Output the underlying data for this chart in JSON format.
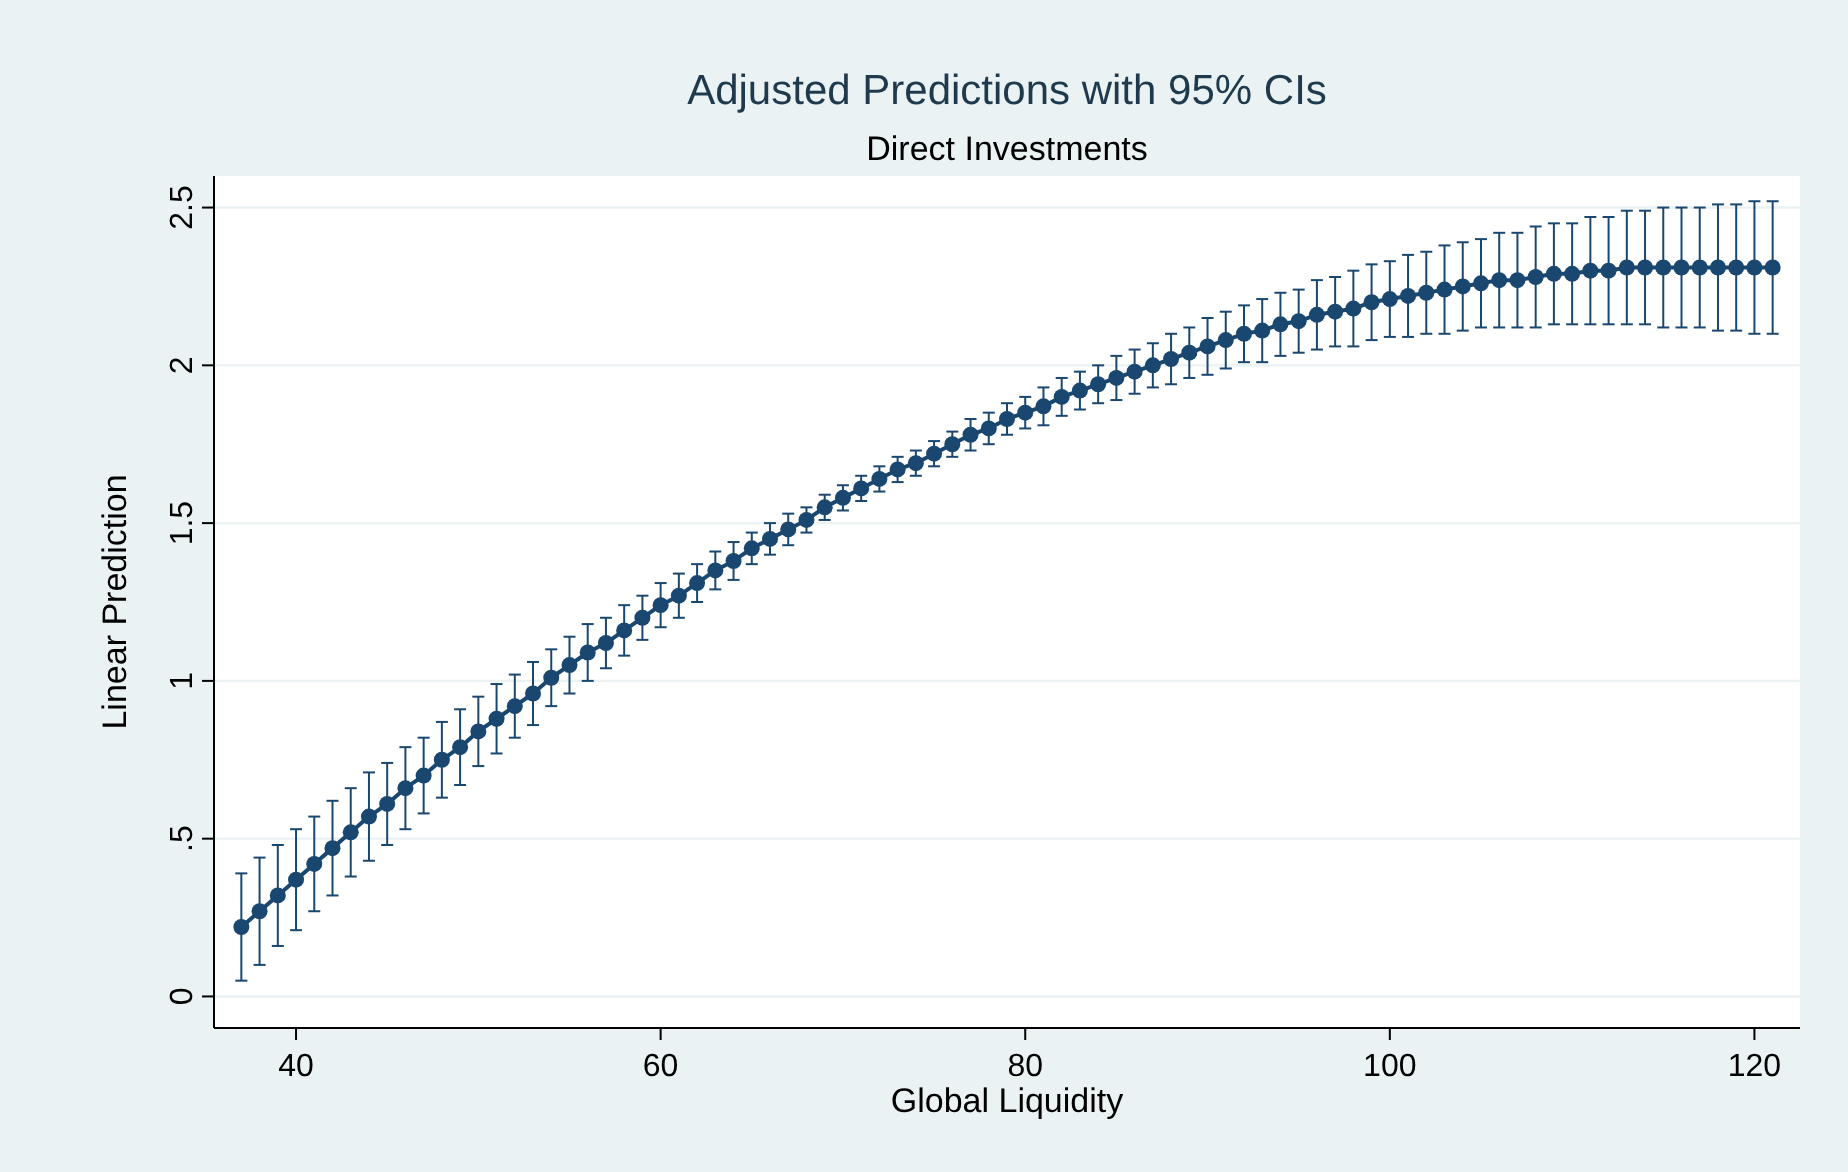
{
  "chart_data": {
    "type": "line",
    "title": "Adjusted Predictions with 95% CIs",
    "subtitle": "Direct Investments",
    "xlabel": "Global Liquidity",
    "ylabel": "Linear Prediction",
    "x": [
      37,
      38,
      39,
      40,
      41,
      42,
      43,
      44,
      45,
      46,
      47,
      48,
      49,
      50,
      51,
      52,
      53,
      54,
      55,
      56,
      57,
      58,
      59,
      60,
      61,
      62,
      63,
      64,
      65,
      66,
      67,
      68,
      69,
      70,
      71,
      72,
      73,
      74,
      75,
      76,
      77,
      78,
      79,
      80,
      81,
      82,
      83,
      84,
      85,
      86,
      87,
      88,
      89,
      90,
      91,
      92,
      93,
      94,
      95,
      96,
      97,
      98,
      99,
      100,
      101,
      102,
      103,
      104,
      105,
      106,
      107,
      108,
      109,
      110,
      111,
      112,
      113,
      114,
      115,
      116,
      117,
      118,
      119,
      120,
      121
    ],
    "series": [
      {
        "color": "#1a476f",
        "values": [
          0.22,
          0.27,
          0.32,
          0.37,
          0.42,
          0.47,
          0.52,
          0.57,
          0.61,
          0.66,
          0.7,
          0.75,
          0.79,
          0.84,
          0.88,
          0.92,
          0.96,
          1.01,
          1.05,
          1.09,
          1.12,
          1.16,
          1.2,
          1.24,
          1.27,
          1.31,
          1.35,
          1.38,
          1.42,
          1.45,
          1.48,
          1.51,
          1.55,
          1.58,
          1.61,
          1.64,
          1.67,
          1.69,
          1.72,
          1.75,
          1.78,
          1.8,
          1.83,
          1.85,
          1.87,
          1.9,
          1.92,
          1.94,
          1.96,
          1.98,
          2.0,
          2.02,
          2.04,
          2.06,
          2.08,
          2.1,
          2.11,
          2.13,
          2.14,
          2.16,
          2.17,
          2.18,
          2.2,
          2.21,
          2.22,
          2.23,
          2.24,
          2.25,
          2.26,
          2.27,
          2.27,
          2.28,
          2.29,
          2.29,
          2.3,
          2.3,
          2.31,
          2.31,
          2.31,
          2.31,
          2.31,
          2.31,
          2.31,
          2.31,
          2.31
        ],
        "errors": [
          0.17,
          0.17,
          0.16,
          0.16,
          0.15,
          0.15,
          0.14,
          0.14,
          0.13,
          0.13,
          0.12,
          0.12,
          0.12,
          0.11,
          0.11,
          0.1,
          0.1,
          0.09,
          0.09,
          0.09,
          0.08,
          0.08,
          0.07,
          0.07,
          0.07,
          0.06,
          0.06,
          0.06,
          0.05,
          0.05,
          0.05,
          0.04,
          0.04,
          0.04,
          0.04,
          0.04,
          0.04,
          0.04,
          0.04,
          0.04,
          0.05,
          0.05,
          0.05,
          0.05,
          0.06,
          0.06,
          0.06,
          0.06,
          0.07,
          0.07,
          0.07,
          0.08,
          0.08,
          0.09,
          0.09,
          0.09,
          0.1,
          0.1,
          0.1,
          0.11,
          0.11,
          0.12,
          0.12,
          0.12,
          0.13,
          0.13,
          0.14,
          0.14,
          0.14,
          0.15,
          0.15,
          0.16,
          0.16,
          0.16,
          0.17,
          0.17,
          0.18,
          0.18,
          0.19,
          0.19,
          0.19,
          0.2,
          0.2,
          0.21,
          0.21
        ]
      }
    ],
    "xlim": [
      35.5,
      122.5
    ],
    "xticks": [
      40,
      60,
      80,
      100,
      120
    ],
    "ylim": [
      -0.1,
      2.6
    ],
    "yticks": [
      0,
      {
        "value": 0.5,
        "label": ".5"
      },
      1,
      1.5,
      2,
      2.5
    ],
    "grid": "y",
    "marker": "circle",
    "line_style": "solid"
  }
}
